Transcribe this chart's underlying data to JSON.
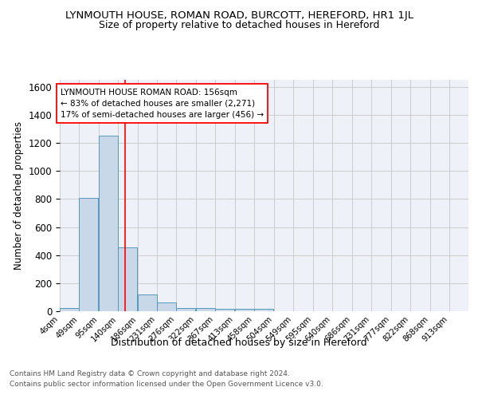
{
  "title": "LYNMOUTH HOUSE, ROMAN ROAD, BURCOTT, HEREFORD, HR1 1JL",
  "subtitle": "Size of property relative to detached houses in Hereford",
  "xlabel": "Distribution of detached houses by size in Hereford",
  "ylabel": "Number of detached properties",
  "bin_labels": [
    "4sqm",
    "49sqm",
    "95sqm",
    "140sqm",
    "186sqm",
    "231sqm",
    "276sqm",
    "322sqm",
    "367sqm",
    "413sqm",
    "458sqm",
    "504sqm",
    "549sqm",
    "595sqm",
    "640sqm",
    "686sqm",
    "731sqm",
    "777sqm",
    "822sqm",
    "868sqm",
    "913sqm"
  ],
  "bin_edges": [
    4,
    49,
    95,
    140,
    186,
    231,
    276,
    322,
    367,
    413,
    458,
    504,
    549,
    595,
    640,
    686,
    731,
    777,
    822,
    868,
    913
  ],
  "bar_heights": [
    25,
    810,
    1250,
    455,
    120,
    60,
    20,
    20,
    15,
    15,
    15,
    0,
    0,
    0,
    0,
    0,
    0,
    0,
    0,
    0
  ],
  "bar_color": "#c8d8e8",
  "bar_edge_color": "#5599bb",
  "grid_color": "#cccccc",
  "bg_color": "#eef2f8",
  "red_line_x": 156,
  "ylim": [
    0,
    1650
  ],
  "yticks": [
    0,
    200,
    400,
    600,
    800,
    1000,
    1200,
    1400,
    1600
  ],
  "annotation_lines": [
    "LYNMOUTH HOUSE ROMAN ROAD: 156sqm",
    "← 83% of detached houses are smaller (2,271)",
    "17% of semi-detached houses are larger (456) →"
  ],
  "footer_line1": "Contains HM Land Registry data © Crown copyright and database right 2024.",
  "footer_line2": "Contains public sector information licensed under the Open Government Licence v3.0."
}
